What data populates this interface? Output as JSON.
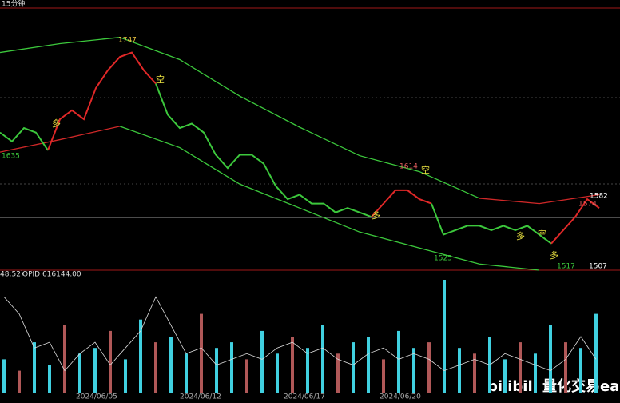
{
  "header": {
    "period": "15分钟"
  },
  "chart_data": {
    "type": "line",
    "ylim": [
      1495,
      1790
    ],
    "price_up": [
      null,
      null,
      null,
      null,
      1630,
      1665,
      1675,
      1665,
      1700,
      1720,
      1735,
      1740,
      1720,
      1705,
      null,
      null,
      null,
      null,
      null,
      null,
      null,
      null,
      null,
      null,
      null,
      null,
      null,
      null,
      null,
      null,
      null,
      1555,
      1570,
      1585,
      1585,
      1575,
      1570,
      null,
      null,
      null,
      null,
      null,
      null,
      null,
      null,
      null,
      1525,
      1540,
      1555,
      1575,
      1565
    ],
    "price_down": [
      1650,
      1640,
      1655,
      1650,
      1630,
      null,
      null,
      null,
      null,
      null,
      null,
      null,
      null,
      1705,
      1670,
      1655,
      1660,
      1650,
      1625,
      1610,
      1625,
      1625,
      1615,
      1590,
      1575,
      1580,
      1570,
      1570,
      1560,
      1565,
      1560,
      1555,
      null,
      null,
      null,
      null,
      1570,
      1535,
      1540,
      1545,
      1545,
      1540,
      1545,
      1540,
      1545,
      1535,
      1525,
      null,
      null,
      null,
      null
    ],
    "upper_band": [
      1740,
      1750,
      1757,
      1732,
      1691,
      1656,
      1624,
      1606,
      1576,
      null,
      null
    ],
    "upper_band_red": [
      null,
      null,
      null,
      null,
      null,
      null,
      null,
      null,
      1576,
      1570,
      1580
    ],
    "lower_band": [
      null,
      null,
      1657,
      1633,
      1592,
      1565,
      1538,
      1520,
      1502,
      1495,
      null
    ],
    "lower_band_red": [
      1628,
      1642,
      1657,
      null,
      null,
      null,
      null,
      null,
      null,
      null,
      null
    ],
    "price_labels": [
      1747,
      1635,
      1614,
      1582,
      1574,
      1525,
      1517,
      1507
    ],
    "signals": [
      "多",
      "空",
      "多",
      "空",
      "多",
      "空",
      "多"
    ],
    "volume_legend": "48:52)",
    "oi_legend": "OPID 616144.00",
    "vlim": [
      0,
      100
    ],
    "volume_up": [
      30,
      null,
      45,
      25,
      null,
      35,
      40,
      null,
      30,
      65,
      null,
      50,
      35,
      null,
      40,
      45,
      null,
      55,
      35,
      null,
      40,
      60,
      null,
      45,
      50,
      null,
      55,
      40,
      null,
      100,
      40,
      null,
      50,
      30,
      null,
      35,
      60,
      null,
      40,
      70
    ],
    "volume_down": [
      null,
      20,
      null,
      null,
      60,
      null,
      null,
      55,
      null,
      null,
      45,
      null,
      null,
      70,
      null,
      null,
      30,
      null,
      null,
      50,
      null,
      null,
      35,
      null,
      null,
      30,
      null,
      null,
      45,
      null,
      null,
      35,
      null,
      null,
      45,
      null,
      null,
      45,
      null,
      null
    ],
    "open_interest": [
      85,
      70,
      40,
      45,
      20,
      35,
      45,
      25,
      40,
      55,
      85,
      60,
      35,
      40,
      25,
      30,
      35,
      30,
      40,
      45,
      35,
      40,
      30,
      25,
      35,
      40,
      30,
      35,
      30,
      20,
      25,
      30,
      25,
      35,
      30,
      25,
      20,
      30,
      50,
      30
    ],
    "dates": [
      "2024/06/05",
      "2024/06/12",
      "2024/06/17",
      "2024/06/20"
    ]
  },
  "watermark": "bilibili 量化交易ea系统"
}
